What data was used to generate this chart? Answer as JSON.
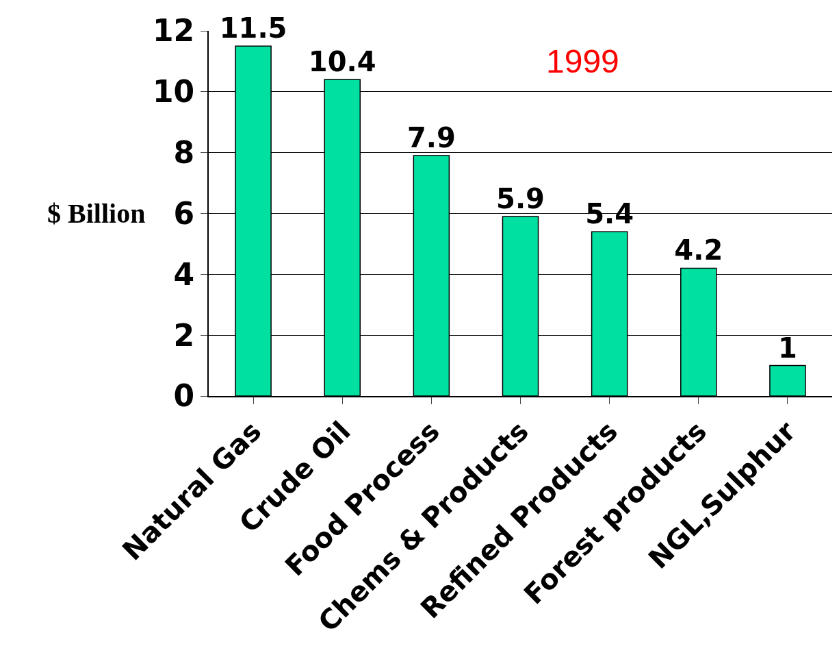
{
  "chart_data": {
    "type": "bar",
    "ylabel": "$ Billion",
    "annotations": [
      "1999"
    ],
    "categories": [
      "Natural Gas",
      "Crude Oil",
      "Food Process",
      "Chems & Products",
      "Refined Products",
      "Forest products",
      "NGL,Sulphur"
    ],
    "values": [
      11.5,
      10.4,
      7.9,
      5.9,
      5.4,
      4.2,
      1
    ],
    "color": "#00e0a0",
    "ylim": [
      0,
      12
    ],
    "yticks": [
      0,
      2,
      4,
      6,
      8,
      10,
      12
    ],
    "grid": "y",
    "data_labels": true
  }
}
